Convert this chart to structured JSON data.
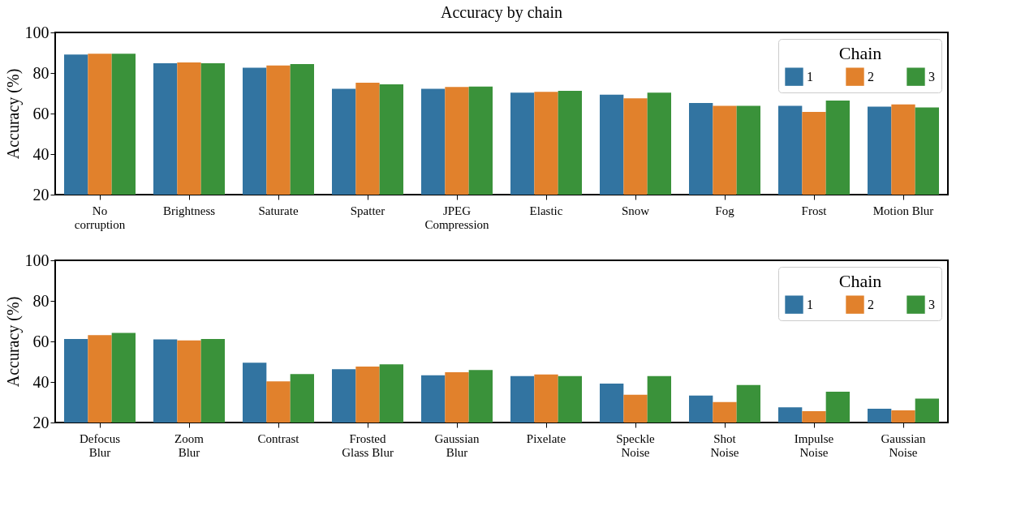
{
  "chart_data": [
    {
      "type": "bar",
      "title": "Accuracy by chain",
      "ylabel": "Accuracy (%)",
      "legend_title": "Chain",
      "legend": "top right",
      "grid": false,
      "categories": [
        "No\ncorruption",
        "Brightness",
        "Saturate",
        "Spatter",
        "JPEG\nCompression",
        "Elastic",
        "Snow",
        "Fog",
        "Frost",
        "Motion Blur"
      ],
      "ylim": [
        20,
        100
      ],
      "yticks": [
        20,
        40,
        60,
        80,
        100
      ],
      "series": [
        {
          "name": "1",
          "color": "#3274a1",
          "values": [
            89.1,
            84.8,
            82.6,
            72.2,
            72.2,
            70.3,
            69.3,
            65.2,
            63.8,
            63.4
          ]
        },
        {
          "name": "2",
          "color": "#e1812c",
          "values": [
            89.5,
            85.2,
            83.7,
            75.2,
            73.1,
            70.7,
            67.5,
            63.8,
            60.8,
            64.5
          ]
        },
        {
          "name": "3",
          "color": "#3a923a",
          "values": [
            89.5,
            84.8,
            84.4,
            74.4,
            73.3,
            71.2,
            70.3,
            63.8,
            66.4,
            63.0
          ]
        }
      ]
    },
    {
      "type": "bar",
      "ylabel": "Accuracy (%)",
      "legend_title": "Chain",
      "legend": "top right",
      "grid": false,
      "categories": [
        "Defocus\nBlur",
        "Zoom\nBlur",
        "Contrast",
        "Frosted\nGlass Blur",
        "Gaussian\nBlur",
        "Pixelate",
        "Speckle\nNoise",
        "Shot\nNoise",
        "Impulse\nNoise",
        "Gaussian\nNoise"
      ],
      "ylim": [
        20,
        100
      ],
      "yticks": [
        20,
        40,
        60,
        80,
        100
      ],
      "series": [
        {
          "name": "1",
          "color": "#3274a1",
          "values": [
            61.2,
            61.0,
            49.5,
            46.3,
            43.3,
            42.9,
            39.2,
            33.3,
            27.5,
            26.8
          ]
        },
        {
          "name": "2",
          "color": "#e1812c",
          "values": [
            63.1,
            60.5,
            40.3,
            47.6,
            44.8,
            43.7,
            33.7,
            30.1,
            25.6,
            26.0
          ]
        },
        {
          "name": "3",
          "color": "#3a923a",
          "values": [
            64.2,
            61.2,
            43.9,
            48.7,
            45.9,
            42.9,
            42.9,
            38.5,
            35.2,
            31.8
          ]
        }
      ]
    }
  ]
}
